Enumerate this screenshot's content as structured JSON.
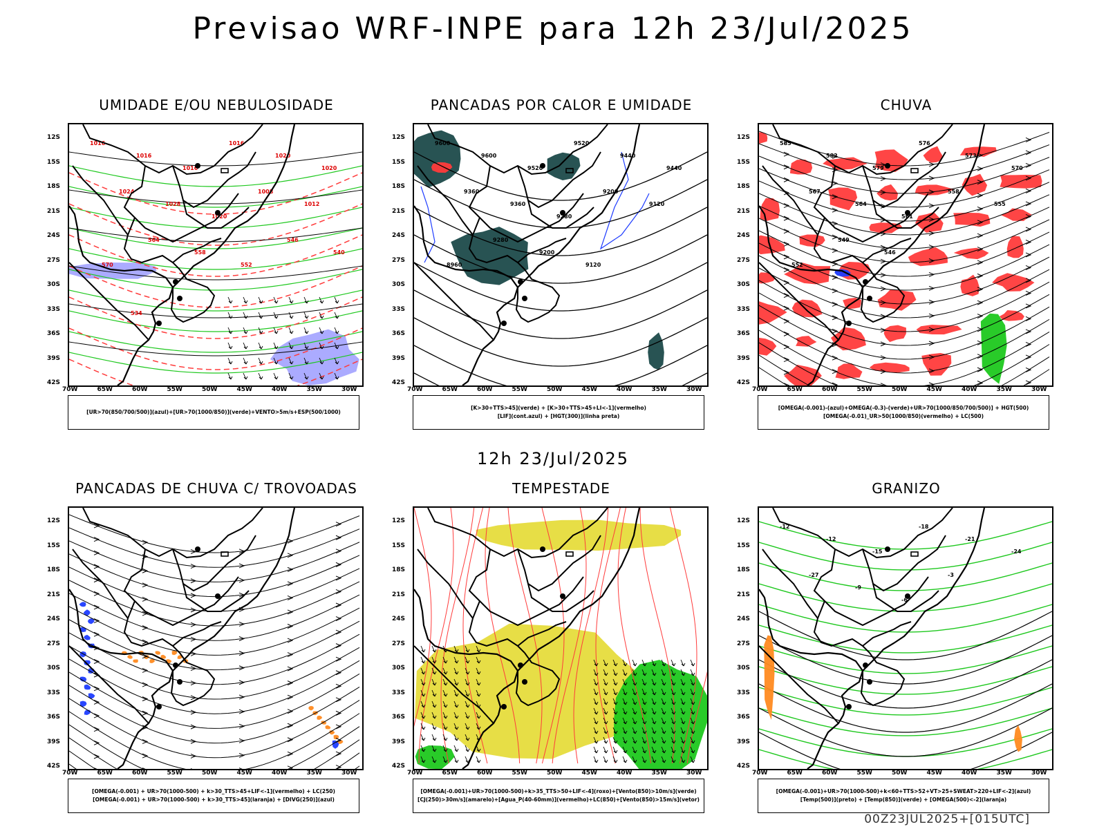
{
  "title": "Previsao WRF-INPE  para 12h 23/Jul/2025",
  "mid_title": "12h 23/Jul/2025",
  "footer": "00Z23JUL2025+[015UTC]",
  "lat_labels": [
    "12S",
    "15S",
    "18S",
    "21S",
    "24S",
    "27S",
    "30S",
    "33S",
    "36S",
    "39S",
    "42S"
  ],
  "lon_labels": [
    "70W",
    "65W",
    "60W",
    "55W",
    "50W",
    "45W",
    "40W",
    "35W",
    "30W"
  ],
  "colors": {
    "red": "#ff3b3b",
    "green": "#1ec81e",
    "blue": "#1e3cff",
    "lightblue": "#a6a6ff",
    "darkteal": "#1c4a4a",
    "yellow": "#e6dc3c",
    "orange": "#ff8a20"
  },
  "panels": [
    {
      "id": "umidade",
      "title": "UMIDADE E/OU NEBULOSIDADE",
      "legend": [
        "[UR>70(850/700/500)](azul)+[UR>70(1000/850)](verde)+VENTO>5m/s+ESP(500/1000)"
      ],
      "contour_labels": [
        "1016",
        "1016",
        "1016",
        "1016",
        "1020",
        "1020",
        "1024",
        "1028",
        "1020",
        "1008",
        "1012",
        "570",
        "564",
        "558",
        "552",
        "546",
        "540",
        "534"
      ]
    },
    {
      "id": "pancadas-calor",
      "title": "PANCADAS POR CALOR E UMIDADE",
      "legend": [
        "[K>30+TTS>45](verde) + [K>30+TTS>45+LI<-1](vermelho)",
        "[LIF](cont.azul) + [HGT(300)](linha preta)"
      ],
      "contour_labels": [
        "9600",
        "9600",
        "9520",
        "9520",
        "9440",
        "9440",
        "9360",
        "9360",
        "9280",
        "9200",
        "9120",
        "8960",
        "9280",
        "9200",
        "9120"
      ]
    },
    {
      "id": "chuva",
      "title": "CHUVA",
      "legend": [
        "[OMEGA(-0.001)-(azul)+OMEGA(-0.3)-(verde)+UR>70(1000/850/700/500)] + HGT(500)",
        "[OMEGA(-0.01)_UR>50(1000/850)(vermelho) + LC(500)"
      ],
      "contour_labels": [
        "585",
        "582",
        "579",
        "576",
        "573",
        "570",
        "567",
        "564",
        "561",
        "558",
        "555",
        "552",
        "549",
        "546"
      ]
    },
    {
      "id": "trovoadas",
      "title": "PANCADAS DE CHUVA C/ TROVOADAS",
      "legend": [
        "[OMEGA(-0.001) + UR>70(1000-500) + k>30_TTS>45+LIF<-1](vermelho) + LC(250)",
        "[OMEGA(-0.001) + UR>70(1000-500) + k>30_TTS>45](laranja) + [DIVG(250)](azul)"
      ],
      "contour_labels": []
    },
    {
      "id": "tempestade",
      "title": "TEMPESTADE",
      "legend": [
        "[OMEGA(-0.001)+UR>70(1000-500)+k>35_TTS>50+LIF<-4](roxo)+[Vento(850)>10m/s](verde)",
        "[CJ(250)>30m/s](amarelo)+[Agua_P(40-60mm)](vermelho)+LC(850)+[Vento(850)>15m/s](vetor)"
      ],
      "contour_labels": []
    },
    {
      "id": "granizo",
      "title": "GRANIZO",
      "legend": [
        "[OMEGA(-0.001)+UR>70(1000-500)+k<60+TTS>52+VT>25+SWEAT>220+LIF<-2](azul)",
        "[Temp(500)](preto) + [Temp(850)](verde) + [OMEGA(500)<-2](laranja)"
      ],
      "contour_labels": [
        "-12",
        "-12",
        "-15",
        "-18",
        "-21",
        "-24",
        "-27",
        "-9",
        "-6",
        "-3"
      ]
    }
  ]
}
